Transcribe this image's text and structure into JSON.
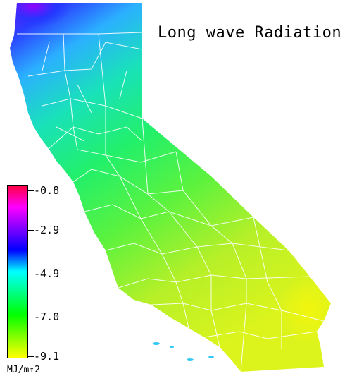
{
  "title": "Long wave Radiation",
  "legend": {
    "units": "MJ/m↑2",
    "ticks": [
      "-0.8",
      "-2.9",
      "-4.9",
      "-7.0",
      "-9.1"
    ],
    "gradient_colors": [
      "#ff0040",
      "#ff00ff",
      "#8000ff",
      "#0000ff",
      "#00ffff",
      "#00ff80",
      "#00ff00",
      "#80ff00",
      "#ffff00"
    ]
  },
  "map_colors": {
    "north_coast": "#6a2cf0",
    "north": "#2d5cff",
    "north_mid": "#2fb6ff",
    "central": "#1fd7a8",
    "valley": "#44f260",
    "south": "#a6f02a",
    "desert": "#d8f41b",
    "county_lines": "#ffffff"
  }
}
